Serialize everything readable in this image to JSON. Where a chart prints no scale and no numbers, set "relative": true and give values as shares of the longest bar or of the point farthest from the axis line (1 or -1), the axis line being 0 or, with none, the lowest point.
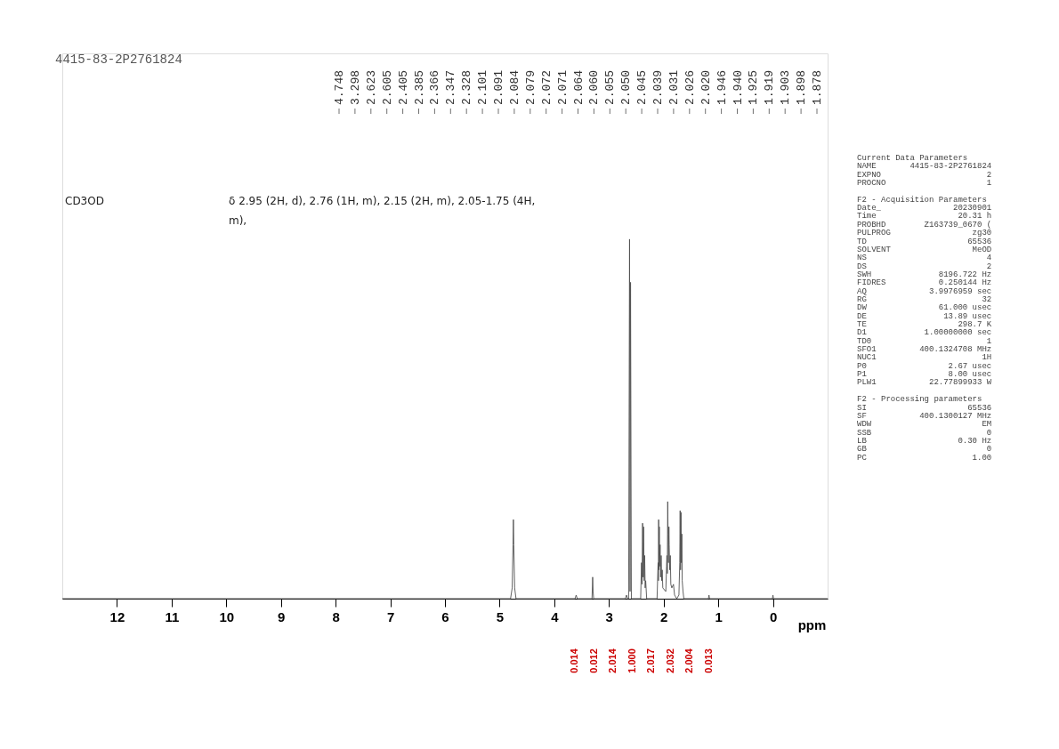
{
  "chart_data": {
    "type": "line",
    "title": "4415-83-2P2761824",
    "xlabel": "ppm",
    "relative": true,
    "grid": false,
    "xlim": [
      13,
      -1
    ],
    "xticks": [
      12,
      11,
      10,
      9,
      8,
      7,
      6,
      5,
      4,
      3,
      2,
      1,
      0
    ],
    "series": [
      {
        "color": "#505050",
        "x": [
          13,
          4.8,
          4.77,
          4.755,
          4.748,
          4.741,
          4.725,
          4.7,
          3.62,
          3.6,
          3.58,
          3.31,
          3.298,
          3.29,
          3.28,
          2.7,
          2.68,
          2.66,
          2.64,
          2.623,
          2.614,
          2.605,
          2.59,
          2.42,
          2.405,
          2.395,
          2.385,
          2.375,
          2.366,
          2.356,
          2.347,
          2.337,
          2.328,
          2.31,
          2.12,
          2.101,
          2.095,
          2.091,
          2.086,
          2.079,
          2.074,
          2.064,
          2.055,
          2.045,
          2.035,
          2.026,
          2.015,
          1.96,
          1.946,
          1.94,
          1.932,
          1.925,
          1.919,
          1.912,
          1.903,
          1.898,
          1.888,
          1.878,
          1.868,
          1.85,
          1.82,
          1.8,
          1.76,
          1.72,
          1.705,
          1.698,
          1.69,
          1.682,
          1.675,
          1.667,
          1.66,
          1.645,
          1.63,
          1.18,
          1.17,
          1.16,
          0.01,
          0,
          -0.01,
          -1
        ],
        "values": [
          0,
          0,
          0.03,
          0.15,
          0.22,
          0.15,
          0.03,
          0,
          0,
          0.01,
          0,
          0,
          0.06,
          0.02,
          0,
          0,
          0.01,
          0,
          0,
          1.0,
          0.02,
          0.88,
          0,
          0,
          0.1,
          0.04,
          0.21,
          0.06,
          0.2,
          0.05,
          0.12,
          0.03,
          0.05,
          0,
          0,
          0.1,
          0.05,
          0.22,
          0.08,
          0.2,
          0.09,
          0.15,
          0.06,
          0.12,
          0.05,
          0.08,
          0.03,
          0.02,
          0.09,
          0.12,
          0.07,
          0.27,
          0.18,
          0.1,
          0.2,
          0.15,
          0.08,
          0.12,
          0.04,
          0.03,
          0.04,
          0.01,
          0,
          0.01,
          0.1,
          0.245,
          0.08,
          0.24,
          0.1,
          0.18,
          0.05,
          0.02,
          0,
          0,
          0.01,
          0,
          0,
          0.01,
          0,
          0
        ]
      }
    ],
    "annotations": [
      "CD3OD",
      "δ 2.95 (2H, d), 2.76 (1H, m), 2.15 (2H, m), 2.05-1.75 (4H, m),",
      "Current Data Parameters\nNAME  4415-83-2P2761824\nEXPNO  2\nPROCNO  1",
      "F2 - Acquisition Parameters\nDate_  20230901\nTime  20.31 h\nPROBHD  Z163739_0670 (\nPULPROG  zg30\nTD  65536\nSOLVENT  MeOD\nNS  4\nDS  2\nSWH  8196.722 Hz\nFIDRES  0.250144 Hz\nAQ  3.9976959 sec\nRG  32\nDW  61.000 usec\nDE  13.89 usec\nTE  298.7 K\nD1  1.00000000 sec\nTD0  1\nSFO1  400.1324708 MHz\nNUC1  1H\nP0  2.67 usec\nP1  8.00 usec\nPLW1  22.77899933 W",
      "F2 - Processing parameters\nSI  65536\nSF  400.1300127 MHz\nWDW  EM\nSSB  0\nLB  0.30 Hz\nGB  0\nPC  1.00",
      "4.748",
      "3.298",
      "2.623",
      "2.605",
      "2.405",
      "2.385",
      "2.366",
      "2.347",
      "2.328",
      "2.101",
      "2.091",
      "2.084",
      "2.079",
      "2.072",
      "2.071",
      "2.064",
      "2.060",
      "2.055",
      "2.050",
      "2.045",
      "2.039",
      "2.031",
      "2.026",
      "2.020",
      "1.946",
      "1.940",
      "1.925",
      "1.919",
      "1.903",
      "1.898",
      "1.878",
      "0.014",
      "0.012",
      "2.014",
      "1.000",
      "2.017",
      "2.032",
      "2.004",
      "0.013"
    ]
  }
}
